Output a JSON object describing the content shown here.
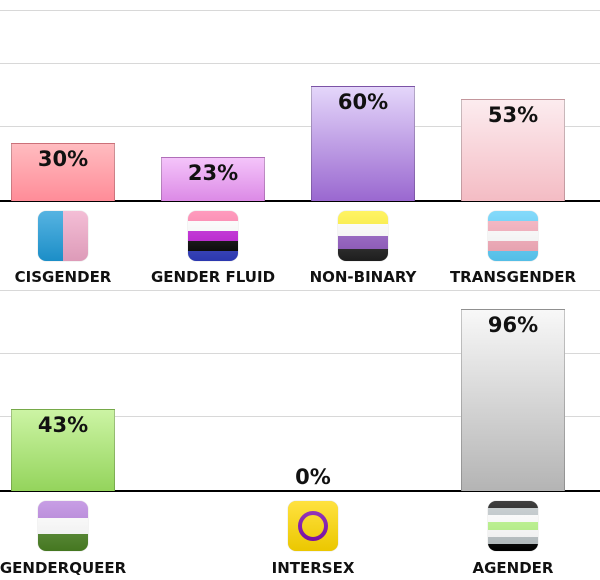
{
  "chart_data": [
    {
      "type": "bar",
      "ylim": [
        0,
        100
      ],
      "unit": "%",
      "categories": [
        "CISGENDER",
        "GENDER FLUID",
        "NON-BINARY",
        "TRANSGENDER"
      ],
      "values": [
        30,
        23,
        60,
        53
      ],
      "labels": [
        "30%",
        "23%",
        "60%",
        "53%"
      ],
      "colors": [
        [
          "#ffbcc0",
          "#ff8c98"
        ],
        [
          "#f4c4fa",
          "#dc8ae6"
        ],
        [
          "#e4d6fa",
          "#9a68d0"
        ],
        [
          "#fcecef",
          "#f4bcc4"
        ]
      ],
      "icons": [
        "cisgender-flag-icon",
        "genderfluid-flag-icon",
        "nonbinary-flag-icon",
        "transgender-flag-icon"
      ],
      "flags": [
        {
          "dir": "row",
          "stripes": [
            "#1e9ad8",
            "#f0a8c8"
          ]
        },
        {
          "dir": "column",
          "stripes": [
            "#ff7aa8",
            "#ffffff",
            "#be18d6",
            "#000000",
            "#2f3cbe"
          ]
        },
        {
          "dir": "column",
          "stripes": [
            "#fff030",
            "#ffffff",
            "#9058c0",
            "#202020"
          ]
        },
        {
          "dir": "column",
          "stripes": [
            "#5bcefa",
            "#f5a9b8",
            "#ffffff",
            "#f5a9b8",
            "#5bcefa"
          ]
        }
      ]
    },
    {
      "type": "bar",
      "ylim": [
        0,
        100
      ],
      "unit": "%",
      "categories": [
        "GENDERQUEER",
        "INTERSEX",
        "AGENDER"
      ],
      "values": [
        43,
        0,
        96
      ],
      "labels": [
        "43%",
        "0%",
        "96%"
      ],
      "colors": [
        [
          "#ccf4a4",
          "#94d45c"
        ],
        [
          "#ffffff",
          "#ffffff"
        ],
        [
          "#f8f8f8",
          "#b4b4b4"
        ]
      ],
      "icons": [
        "genderqueer-flag-icon",
        "intersex-flag-icon",
        "agender-flag-icon"
      ],
      "flags": [
        {
          "dir": "column",
          "stripes": [
            "#b57edc",
            "#ffffff",
            "#4a8123"
          ]
        },
        {
          "dir": "ring",
          "stripes": [
            "#ffd800",
            "#7902aa"
          ]
        },
        {
          "dir": "column",
          "stripes": [
            "#000000",
            "#bcc4c7",
            "#ffffff",
            "#b7f684",
            "#ffffff",
            "#bcc4c7",
            "#000000"
          ]
        }
      ]
    }
  ]
}
